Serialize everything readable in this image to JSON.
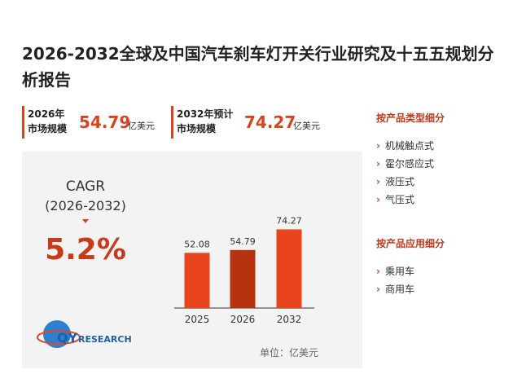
{
  "title": "2026-2032全球及中国汽车刹车灯开关行业研究及十五五规划分析报告",
  "stats": [
    {
      "label_lines": [
        "2026年",
        "市场规模"
      ],
      "value": 54.79,
      "unit": "亿美元"
    },
    {
      "label_lines": [
        "2032年预计",
        "市场规模"
      ],
      "value": 74.27,
      "unit": "亿美元"
    }
  ],
  "cagr": {
    "label": "CAGR",
    "period": "(2026-2032)",
    "value": "5.2%"
  },
  "logo": {
    "mark": "QY",
    "text": "RESEARCH"
  },
  "chart_data": {
    "type": "bar",
    "categories": [
      "2025",
      "2026",
      "2032"
    ],
    "values": [
      52.08,
      54.79,
      74.27
    ],
    "colors": [
      "#e8441d",
      "#b5330f",
      "#e8441d"
    ],
    "unit_label": "单位：亿美元"
  },
  "sidebar": [
    {
      "title": "按产品类型细分",
      "items": [
        "机械触点式",
        "霍尔感应式",
        "液压式",
        "气压式"
      ]
    },
    {
      "title": "按产品应用细分",
      "items": [
        "乘用车",
        "商用车"
      ]
    }
  ]
}
